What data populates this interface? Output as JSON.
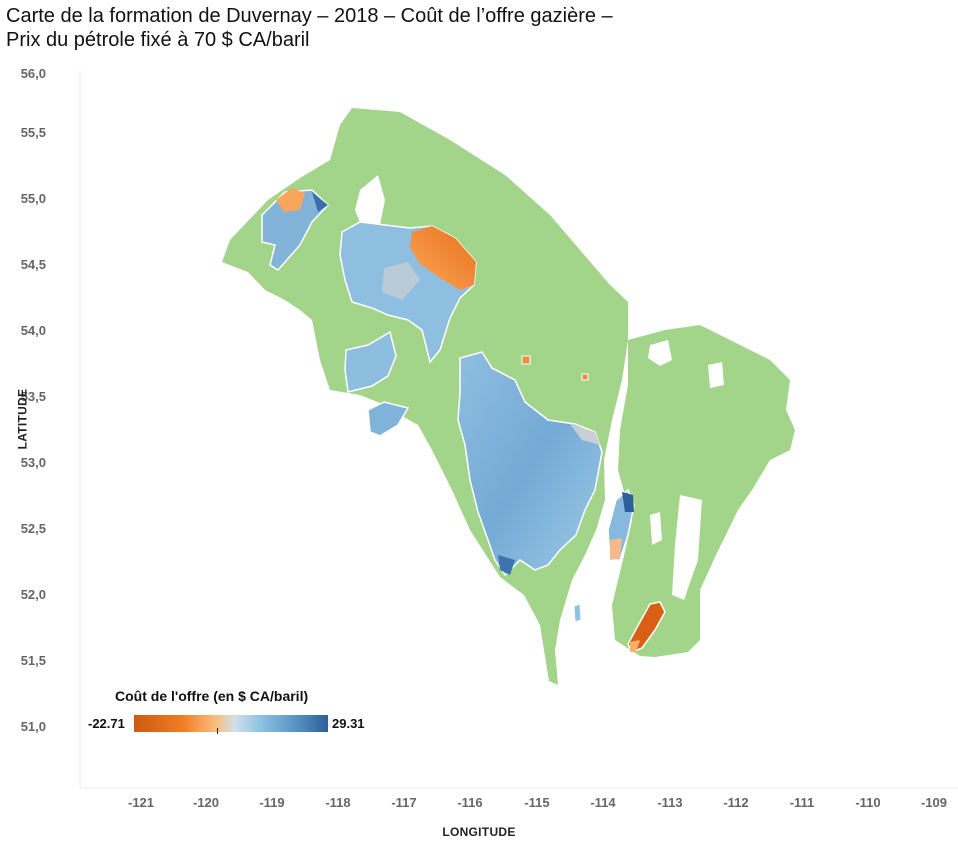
{
  "title": {
    "line1": "Carte de la formation de Duvernay – 2018 – Coût de l’offre gazière –",
    "line2": "Prix du pétrole fixé à 70 $ CA/baril"
  },
  "axes": {
    "x_label": "LONGITUDE",
    "y_label": "LATITUDE",
    "x_ticks": [
      "-121",
      "-120",
      "-119",
      "-118",
      "-117",
      "-116",
      "-115",
      "-114",
      "-113",
      "-112",
      "-111",
      "-110",
      "-109"
    ],
    "y_ticks": [
      "56,0",
      "55,5",
      "55,0",
      "54,5",
      "54,0",
      "53,5",
      "53,0",
      "52,5",
      "52,0",
      "51,5",
      "51,0"
    ]
  },
  "legend": {
    "title": "Coût de l'offre (en $ CA/baril)",
    "min": "-22.71",
    "max": "29.31"
  },
  "colors": {
    "formation_extent": "#a2d48a",
    "low_cost": "#cd5a12",
    "mid_low": "#fbbd7c",
    "mid_high": "#8fc2e2",
    "high_cost": "#2d5f98"
  }
}
